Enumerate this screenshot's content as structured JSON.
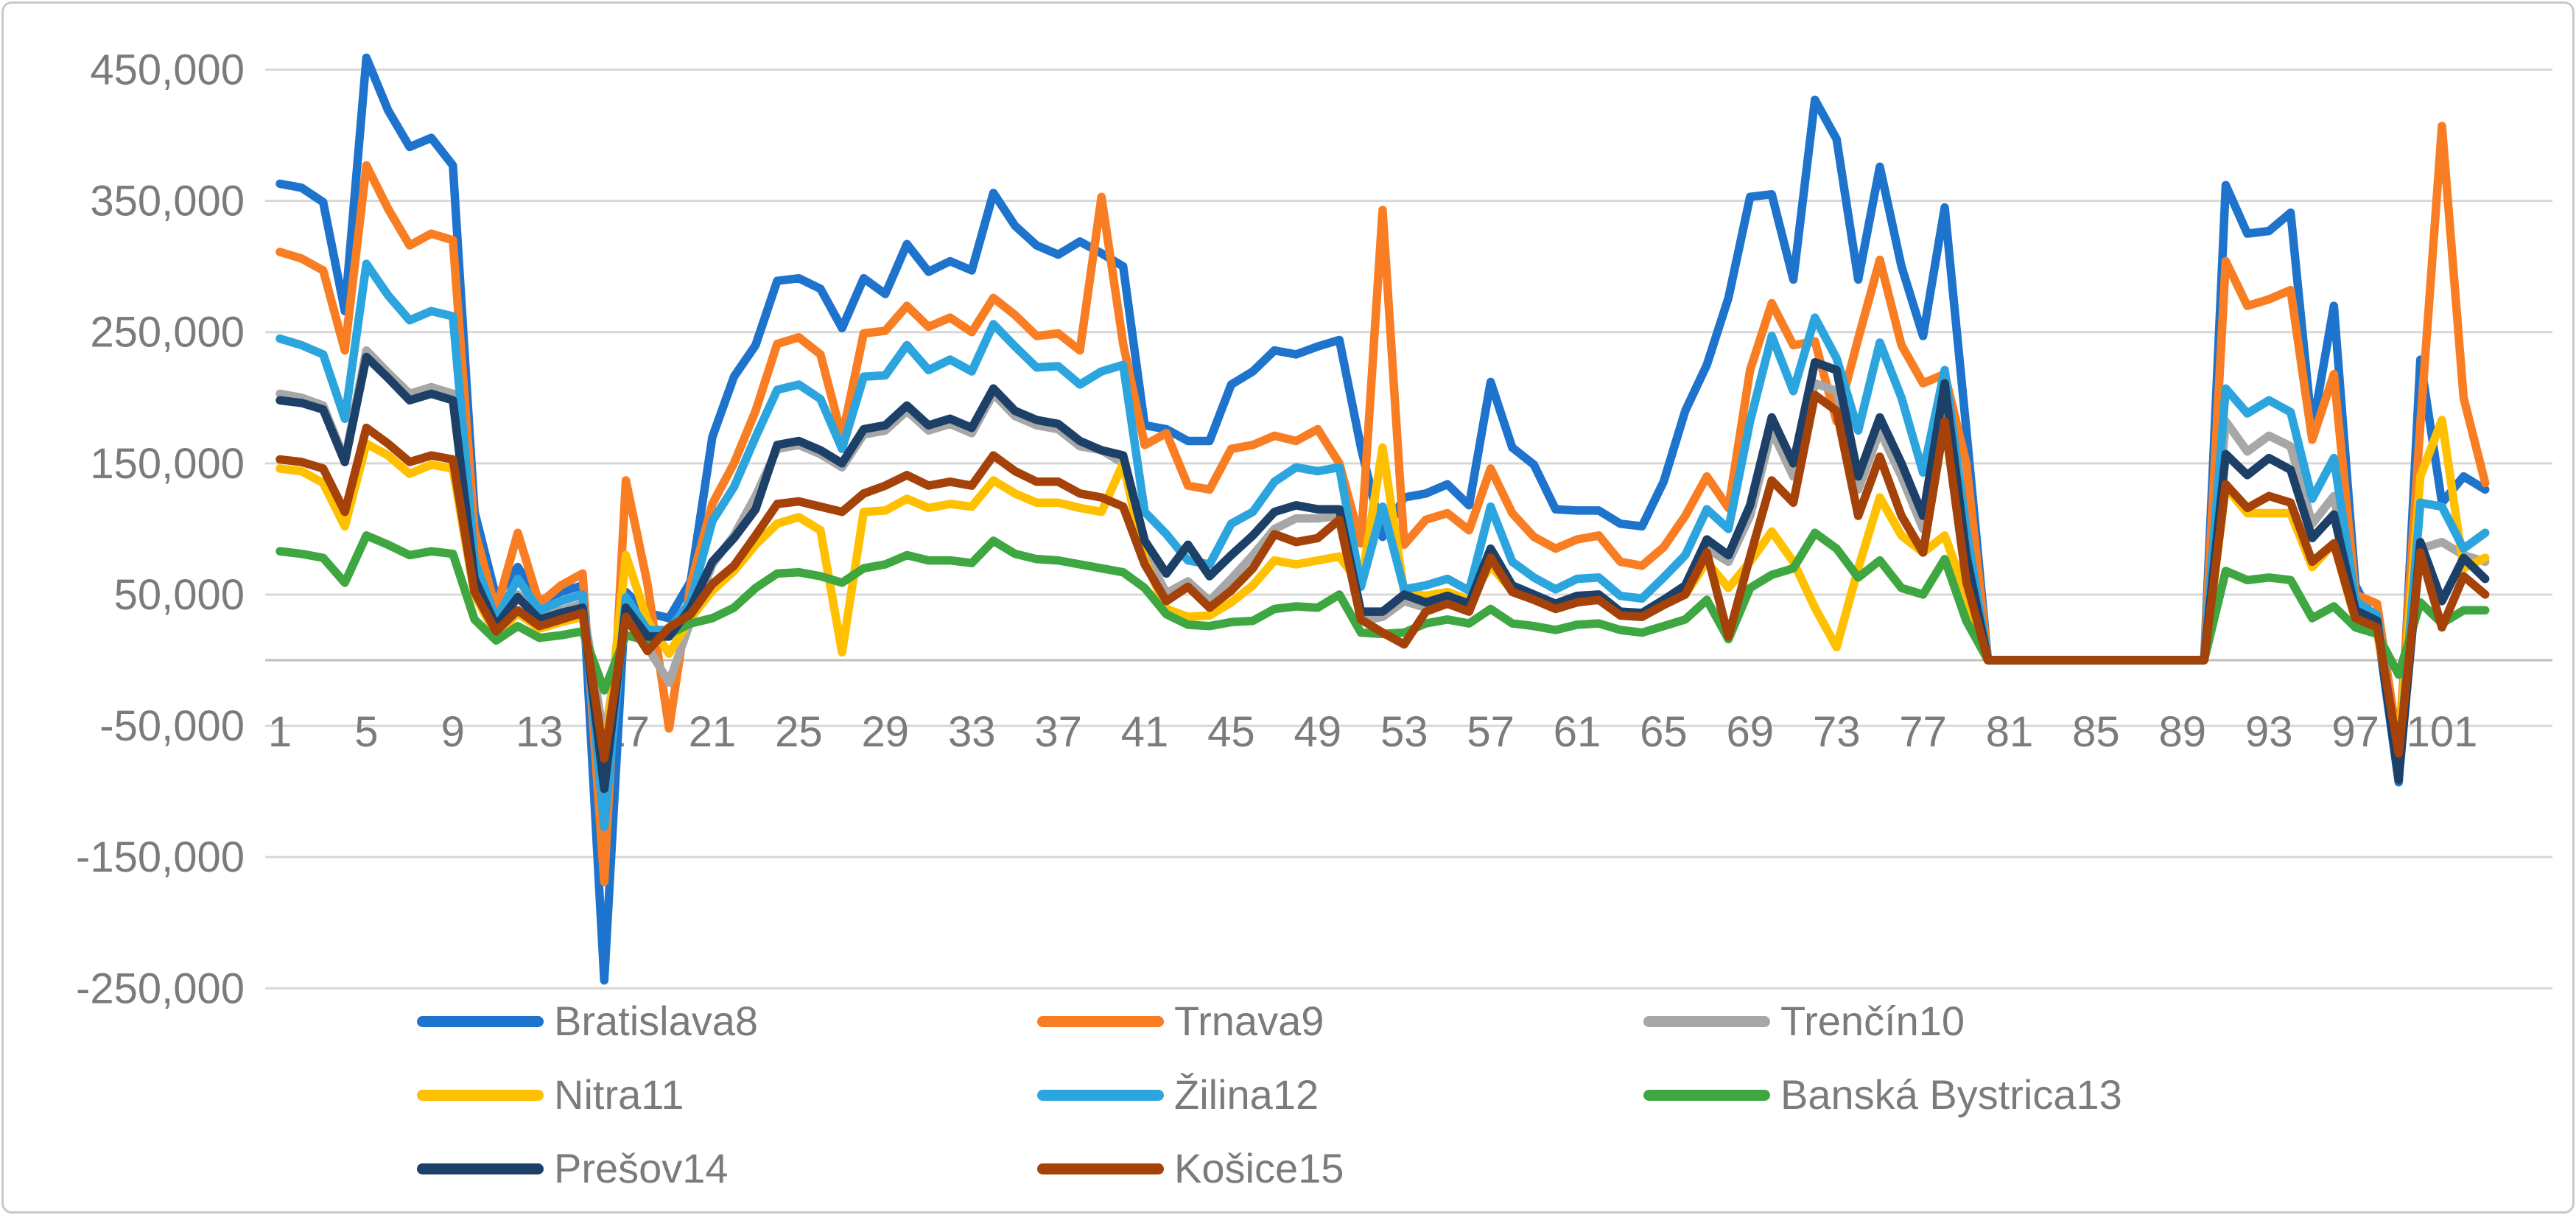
{
  "chart_data": {
    "type": "line",
    "title": "",
    "xlabel": "",
    "ylabel": "",
    "legend_position": "bottom",
    "grid": true,
    "x_axis": {
      "n_points": 103,
      "tick_values": [
        1,
        5,
        9,
        13,
        17,
        21,
        25,
        29,
        33,
        37,
        41,
        45,
        49,
        53,
        57,
        61,
        65,
        69,
        73,
        77,
        81,
        85,
        89,
        93,
        97,
        101
      ],
      "tick_labels": [
        "1",
        "5",
        "9",
        "13",
        "17",
        "21",
        "25",
        "29",
        "33",
        "37",
        "41",
        "45",
        "49",
        "53",
        "57",
        "61",
        "65",
        "69",
        "73",
        "77",
        "81",
        "85",
        "89",
        "93",
        "97",
        "101"
      ]
    },
    "y_axis": {
      "min": -250000,
      "max": 450000,
      "major_unit": 100000,
      "tick_values": [
        450000,
        350000,
        250000,
        150000,
        50000,
        -50000,
        -150000,
        -250000
      ],
      "tick_labels": [
        "450,000",
        "350,000",
        "250,000",
        "150,000",
        "50,000",
        "-50,000",
        "-150,000",
        "-250,000"
      ]
    },
    "series": [
      {
        "label": "Bratislava8",
        "color": "#1e73cd",
        "values": [
          363000,
          360000,
          349000,
          266000,
          459000,
          419000,
          391000,
          398000,
          377000,
          113000,
          48000,
          71000,
          45000,
          52000,
          57000,
          -244000,
          52000,
          36000,
          32000,
          60000,
          170000,
          216000,
          240000,
          289000,
          291000,
          283000,
          253000,
          291000,
          279000,
          317000,
          296000,
          304000,
          297000,
          356000,
          331000,
          316000,
          309000,
          319000,
          310000,
          300000,
          179000,
          176000,
          167000,
          167000,
          210000,
          220000,
          236000,
          233000,
          239000,
          244000,
          162000,
          94000,
          124000,
          127000,
          134000,
          118000,
          212000,
          162000,
          149000,
          115000,
          114000,
          114000,
          104000,
          102000,
          136000,
          190000,
          225000,
          276000,
          353000,
          355000,
          290000,
          427000,
          397000,
          290000,
          376000,
          300000,
          247000,
          345000,
          176000,
          0,
          0,
          0,
          0,
          0,
          0,
          0,
          0,
          0,
          0,
          0,
          362000,
          325000,
          327000,
          341000,
          175000,
          270000,
          57000,
          25000,
          -93000,
          229000,
          120000,
          140000,
          130000
        ]
      },
      {
        "label": "Trnava9",
        "color": "#f97d22",
        "values": [
          311000,
          306000,
          297000,
          236000,
          377000,
          344000,
          316000,
          325000,
          320000,
          99000,
          38000,
          97000,
          43000,
          57000,
          66000,
          -169000,
          137000,
          58000,
          -52000,
          58000,
          119000,
          150000,
          190000,
          241000,
          246000,
          233000,
          170000,
          249000,
          251000,
          270000,
          254000,
          261000,
          250000,
          276000,
          263000,
          247000,
          249000,
          236000,
          353000,
          241000,
          164000,
          173000,
          133000,
          130000,
          161000,
          164000,
          171000,
          167000,
          176000,
          150000,
          89000,
          343000,
          88000,
          107000,
          112000,
          99000,
          146000,
          112000,
          94000,
          85000,
          92000,
          95000,
          75000,
          72000,
          86000,
          110000,
          140000,
          116000,
          221000,
          272000,
          240000,
          243000,
          182000,
          245000,
          305000,
          240000,
          211000,
          218000,
          150000,
          0,
          0,
          0,
          0,
          0,
          0,
          0,
          0,
          0,
          0,
          0,
          304000,
          270000,
          275000,
          282000,
          168000,
          218000,
          50000,
          43000,
          -68000,
          180000,
          407000,
          200000,
          135000
        ]
      },
      {
        "label": "Trenčín10",
        "color": "#a7a7a7",
        "values": [
          203000,
          200000,
          194000,
          153000,
          236000,
          219000,
          203000,
          208000,
          203000,
          64000,
          29000,
          50000,
          33000,
          38000,
          43000,
          -61000,
          43000,
          10000,
          -17000,
          30000,
          73000,
          95000,
          125000,
          161000,
          164000,
          157000,
          147000,
          172000,
          175000,
          190000,
          175000,
          180000,
          173000,
          203000,
          186000,
          179000,
          176000,
          163000,
          160000,
          150000,
          83000,
          51000,
          60000,
          45000,
          62000,
          80000,
          100000,
          108000,
          108000,
          110000,
          30000,
          33000,
          45000,
          40000,
          45000,
          38000,
          82000,
          54000,
          46000,
          40000,
          45000,
          47000,
          34000,
          33000,
          42000,
          53000,
          85000,
          75000,
          110000,
          175000,
          140000,
          211000,
          205000,
          130000,
          175000,
          140000,
          100000,
          198000,
          75000,
          0,
          0,
          0,
          0,
          0,
          0,
          0,
          0,
          0,
          0,
          0,
          182000,
          159000,
          171000,
          163000,
          104000,
          125000,
          41000,
          32000,
          -88000,
          85000,
          90000,
          80000,
          75000
        ]
      },
      {
        "label": "Nitra11",
        "color": "#ffc000",
        "values": [
          146000,
          144000,
          135000,
          102000,
          165000,
          156000,
          142000,
          149000,
          146000,
          50000,
          19000,
          36000,
          24000,
          29000,
          33000,
          -80000,
          80000,
          30000,
          5000,
          32000,
          53000,
          68000,
          88000,
          104000,
          109000,
          99000,
          6000,
          113000,
          114000,
          123000,
          116000,
          119000,
          117000,
          137000,
          127000,
          120000,
          120000,
          116000,
          113000,
          150000,
          76000,
          39000,
          33000,
          34000,
          44000,
          57000,
          76000,
          73000,
          76000,
          79000,
          57000,
          162000,
          52000,
          49000,
          52000,
          46000,
          72000,
          53000,
          46000,
          40000,
          46000,
          47000,
          36000,
          34000,
          43000,
          50000,
          75000,
          55000,
          75000,
          98000,
          75000,
          40000,
          10000,
          70000,
          124000,
          95000,
          82000,
          95000,
          50000,
          0,
          0,
          0,
          0,
          0,
          0,
          0,
          0,
          0,
          0,
          0,
          132000,
          112000,
          112000,
          112000,
          71000,
          89000,
          30000,
          21000,
          -68000,
          140000,
          183000,
          70000,
          78000
        ]
      },
      {
        "label": "Žilina12",
        "color": "#2ca5df",
        "values": [
          245000,
          240000,
          233000,
          184000,
          302000,
          278000,
          259000,
          266000,
          262000,
          76000,
          31000,
          62000,
          38000,
          45000,
          50000,
          -127000,
          48000,
          23000,
          23000,
          45000,
          106000,
          132000,
          170000,
          206000,
          210000,
          199000,
          161000,
          216000,
          217000,
          240000,
          221000,
          229000,
          220000,
          256000,
          239000,
          223000,
          224000,
          210000,
          220000,
          225000,
          113000,
          96000,
          76000,
          73000,
          104000,
          113000,
          136000,
          147000,
          144000,
          147000,
          56000,
          117000,
          54000,
          57000,
          62000,
          53000,
          117000,
          75000,
          63000,
          54000,
          62000,
          63000,
          49000,
          47000,
          63000,
          80000,
          115000,
          100000,
          182000,
          247000,
          205000,
          261000,
          230000,
          175000,
          242000,
          200000,
          143000,
          221000,
          100000,
          0,
          0,
          0,
          0,
          0,
          0,
          0,
          0,
          0,
          0,
          0,
          207000,
          188000,
          198000,
          189000,
          123000,
          154000,
          45000,
          34000,
          -82000,
          120000,
          117000,
          85000,
          97000
        ]
      },
      {
        "label": "Banská Bystrica13",
        "color": "#3ea741",
        "values": [
          83000,
          81000,
          78000,
          59000,
          95000,
          88000,
          80000,
          83000,
          81000,
          31000,
          15000,
          26000,
          17000,
          19000,
          22000,
          -23000,
          19000,
          15000,
          20000,
          28000,
          32000,
          40000,
          55000,
          66000,
          67000,
          64000,
          59000,
          70000,
          73000,
          80000,
          76000,
          76000,
          74000,
          91000,
          81000,
          77000,
          76000,
          73000,
          70000,
          67000,
          55000,
          35000,
          27000,
          26000,
          29000,
          30000,
          39000,
          41000,
          40000,
          50000,
          21000,
          20000,
          21000,
          28000,
          31000,
          28000,
          39000,
          28000,
          26000,
          23000,
          27000,
          28000,
          23000,
          21000,
          26000,
          31000,
          46000,
          16000,
          55000,
          65000,
          70000,
          97000,
          85000,
          63000,
          76000,
          55000,
          50000,
          77000,
          30000,
          0,
          0,
          0,
          0,
          0,
          0,
          0,
          0,
          0,
          0,
          0,
          68000,
          61000,
          63000,
          61000,
          32000,
          41000,
          25000,
          20000,
          -11000,
          44000,
          28000,
          38000,
          38000
        ]
      },
      {
        "label": "Prešov14",
        "color": "#1c4068",
        "values": [
          198000,
          196000,
          191000,
          151000,
          231000,
          215000,
          198000,
          203000,
          198000,
          62000,
          26000,
          48000,
          31000,
          36000,
          40000,
          -98000,
          40000,
          18000,
          18000,
          40000,
          75000,
          93000,
          115000,
          164000,
          167000,
          160000,
          150000,
          176000,
          179000,
          194000,
          179000,
          184000,
          177000,
          207000,
          190000,
          183000,
          180000,
          167000,
          160000,
          156000,
          91000,
          66000,
          88000,
          64000,
          80000,
          95000,
          113000,
          118000,
          115000,
          115000,
          37000,
          37000,
          50000,
          44000,
          49000,
          43000,
          85000,
          57000,
          50000,
          43000,
          49000,
          50000,
          37000,
          36000,
          46000,
          57000,
          92000,
          80000,
          118000,
          185000,
          150000,
          227000,
          221000,
          140000,
          185000,
          150000,
          110000,
          211000,
          80000,
          0,
          0,
          0,
          0,
          0,
          0,
          0,
          0,
          0,
          0,
          0,
          157000,
          141000,
          154000,
          145000,
          93000,
          111000,
          38000,
          30000,
          -91000,
          90000,
          45000,
          78000,
          62000
        ]
      },
      {
        "label": "Košice15",
        "color": "#a54209",
        "values": [
          153000,
          151000,
          146000,
          113000,
          177000,
          165000,
          151000,
          156000,
          153000,
          52000,
          22000,
          38000,
          26000,
          31000,
          36000,
          -75000,
          33000,
          7000,
          25000,
          35000,
          58000,
          72000,
          95000,
          119000,
          121000,
          117000,
          113000,
          127000,
          133000,
          141000,
          133000,
          136000,
          133000,
          156000,
          144000,
          136000,
          136000,
          127000,
          124000,
          117000,
          73000,
          45000,
          56000,
          40000,
          53000,
          70000,
          96000,
          90000,
          93000,
          107000,
          31000,
          21000,
          12000,
          37000,
          43000,
          37000,
          78000,
          52000,
          46000,
          39000,
          44000,
          46000,
          34000,
          33000,
          42000,
          50000,
          82000,
          18000,
          79000,
          137000,
          120000,
          202000,
          190000,
          110000,
          155000,
          110000,
          82000,
          182000,
          60000,
          0,
          0,
          0,
          0,
          0,
          0,
          0,
          0,
          0,
          0,
          0,
          134000,
          116000,
          125000,
          120000,
          75000,
          89000,
          32000,
          25000,
          -71000,
          82000,
          25000,
          64000,
          50000
        ]
      }
    ],
    "legend_rows": [
      [
        0,
        1,
        2
      ],
      [
        3,
        4,
        5
      ],
      [
        6,
        7
      ]
    ]
  },
  "style": {
    "gridline_color": "#d8d8d8",
    "zero_axis_color": "#bfbfbf",
    "label_color": "#7b7b7b",
    "frame_border_color": "#c9c9c9",
    "background": "#ffffff"
  }
}
